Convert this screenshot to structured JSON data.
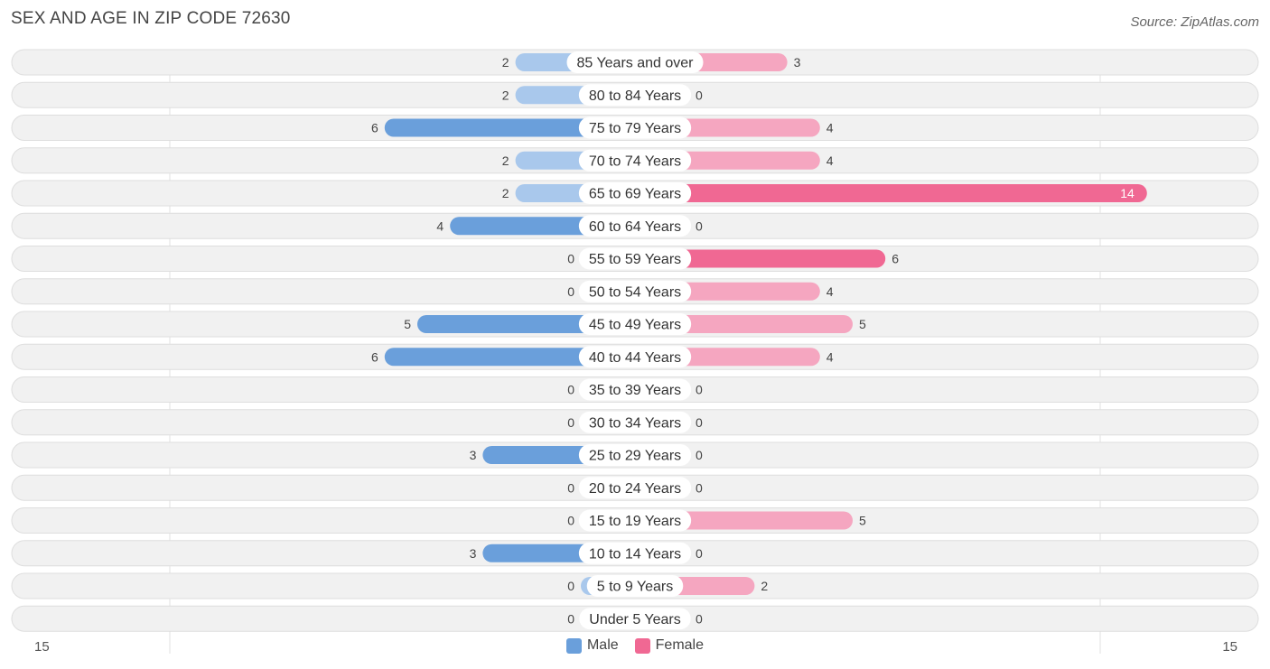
{
  "title": "SEX AND AGE IN ZIP CODE 72630",
  "source": "Source: ZipAtlas.com",
  "colors": {
    "male": "#6a9fdb",
    "male_light": "#a9c8ec",
    "female": "#f06893",
    "female_light": "#f5a6c0",
    "row_bg": "#f1f1f1",
    "row_border": "#dedede"
  },
  "legend": {
    "male": "Male",
    "female": "Female"
  },
  "axis": {
    "left_label": "15",
    "right_label": "15"
  },
  "chart_data": {
    "type": "bar",
    "orientation": "horizontal-diverging",
    "categories": [
      "85 Years and over",
      "80 to 84 Years",
      "75 to 79 Years",
      "70 to 74 Years",
      "65 to 69 Years",
      "60 to 64 Years",
      "55 to 59 Years",
      "50 to 54 Years",
      "45 to 49 Years",
      "40 to 44 Years",
      "35 to 39 Years",
      "30 to 34 Years",
      "25 to 29 Years",
      "20 to 24 Years",
      "15 to 19 Years",
      "10 to 14 Years",
      "5 to 9 Years",
      "Under 5 Years"
    ],
    "series": [
      {
        "name": "Male",
        "values": [
          2,
          2,
          6,
          2,
          2,
          4,
          0,
          0,
          5,
          6,
          0,
          0,
          3,
          0,
          0,
          3,
          0,
          0
        ]
      },
      {
        "name": "Female",
        "values": [
          3,
          0,
          4,
          4,
          14,
          0,
          6,
          4,
          5,
          4,
          0,
          0,
          0,
          0,
          5,
          0,
          2,
          0
        ]
      }
    ],
    "xlim": [
      -15,
      15
    ],
    "legend_position": "bottom-center"
  }
}
